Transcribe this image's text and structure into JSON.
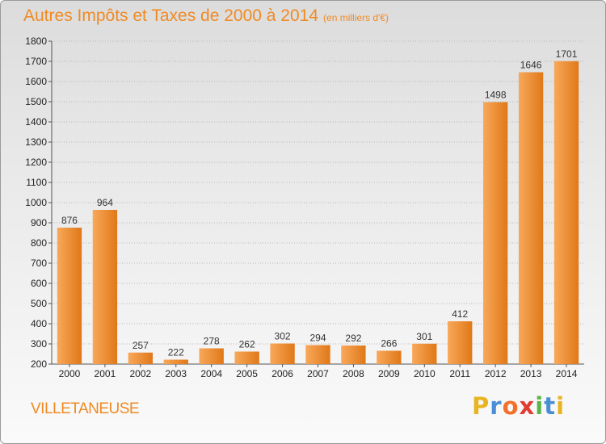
{
  "header": {
    "title": "Autres Impôts et Taxes de 2000 à 2014",
    "unit": "(en milliers d'€)"
  },
  "footer": {
    "commune": "VILLETANEUSE",
    "logo_text": "Proxiti"
  },
  "colors": {
    "bar_light": "#f8a85a",
    "bar_dark": "#e07818",
    "title": "#f08a24"
  },
  "chart_data": {
    "type": "bar",
    "title": "Autres Impôts et Taxes de 2000 à 2014",
    "subtitle": "(en milliers d'€)",
    "xlabel": "",
    "ylabel": "",
    "categories": [
      "2000",
      "2001",
      "2002",
      "2003",
      "2004",
      "2005",
      "2006",
      "2007",
      "2008",
      "2009",
      "2010",
      "2011",
      "2012",
      "2013",
      "2014"
    ],
    "values": [
      876,
      964,
      257,
      222,
      278,
      262,
      302,
      294,
      292,
      266,
      301,
      412,
      1498,
      1646,
      1701
    ],
    "ylim": [
      200,
      1800
    ],
    "yticks": [
      200,
      300,
      400,
      500,
      600,
      700,
      800,
      900,
      1000,
      1100,
      1200,
      1300,
      1400,
      1500,
      1600,
      1700,
      1800
    ],
    "grid": "horizontal-dotted",
    "legend": "none"
  }
}
